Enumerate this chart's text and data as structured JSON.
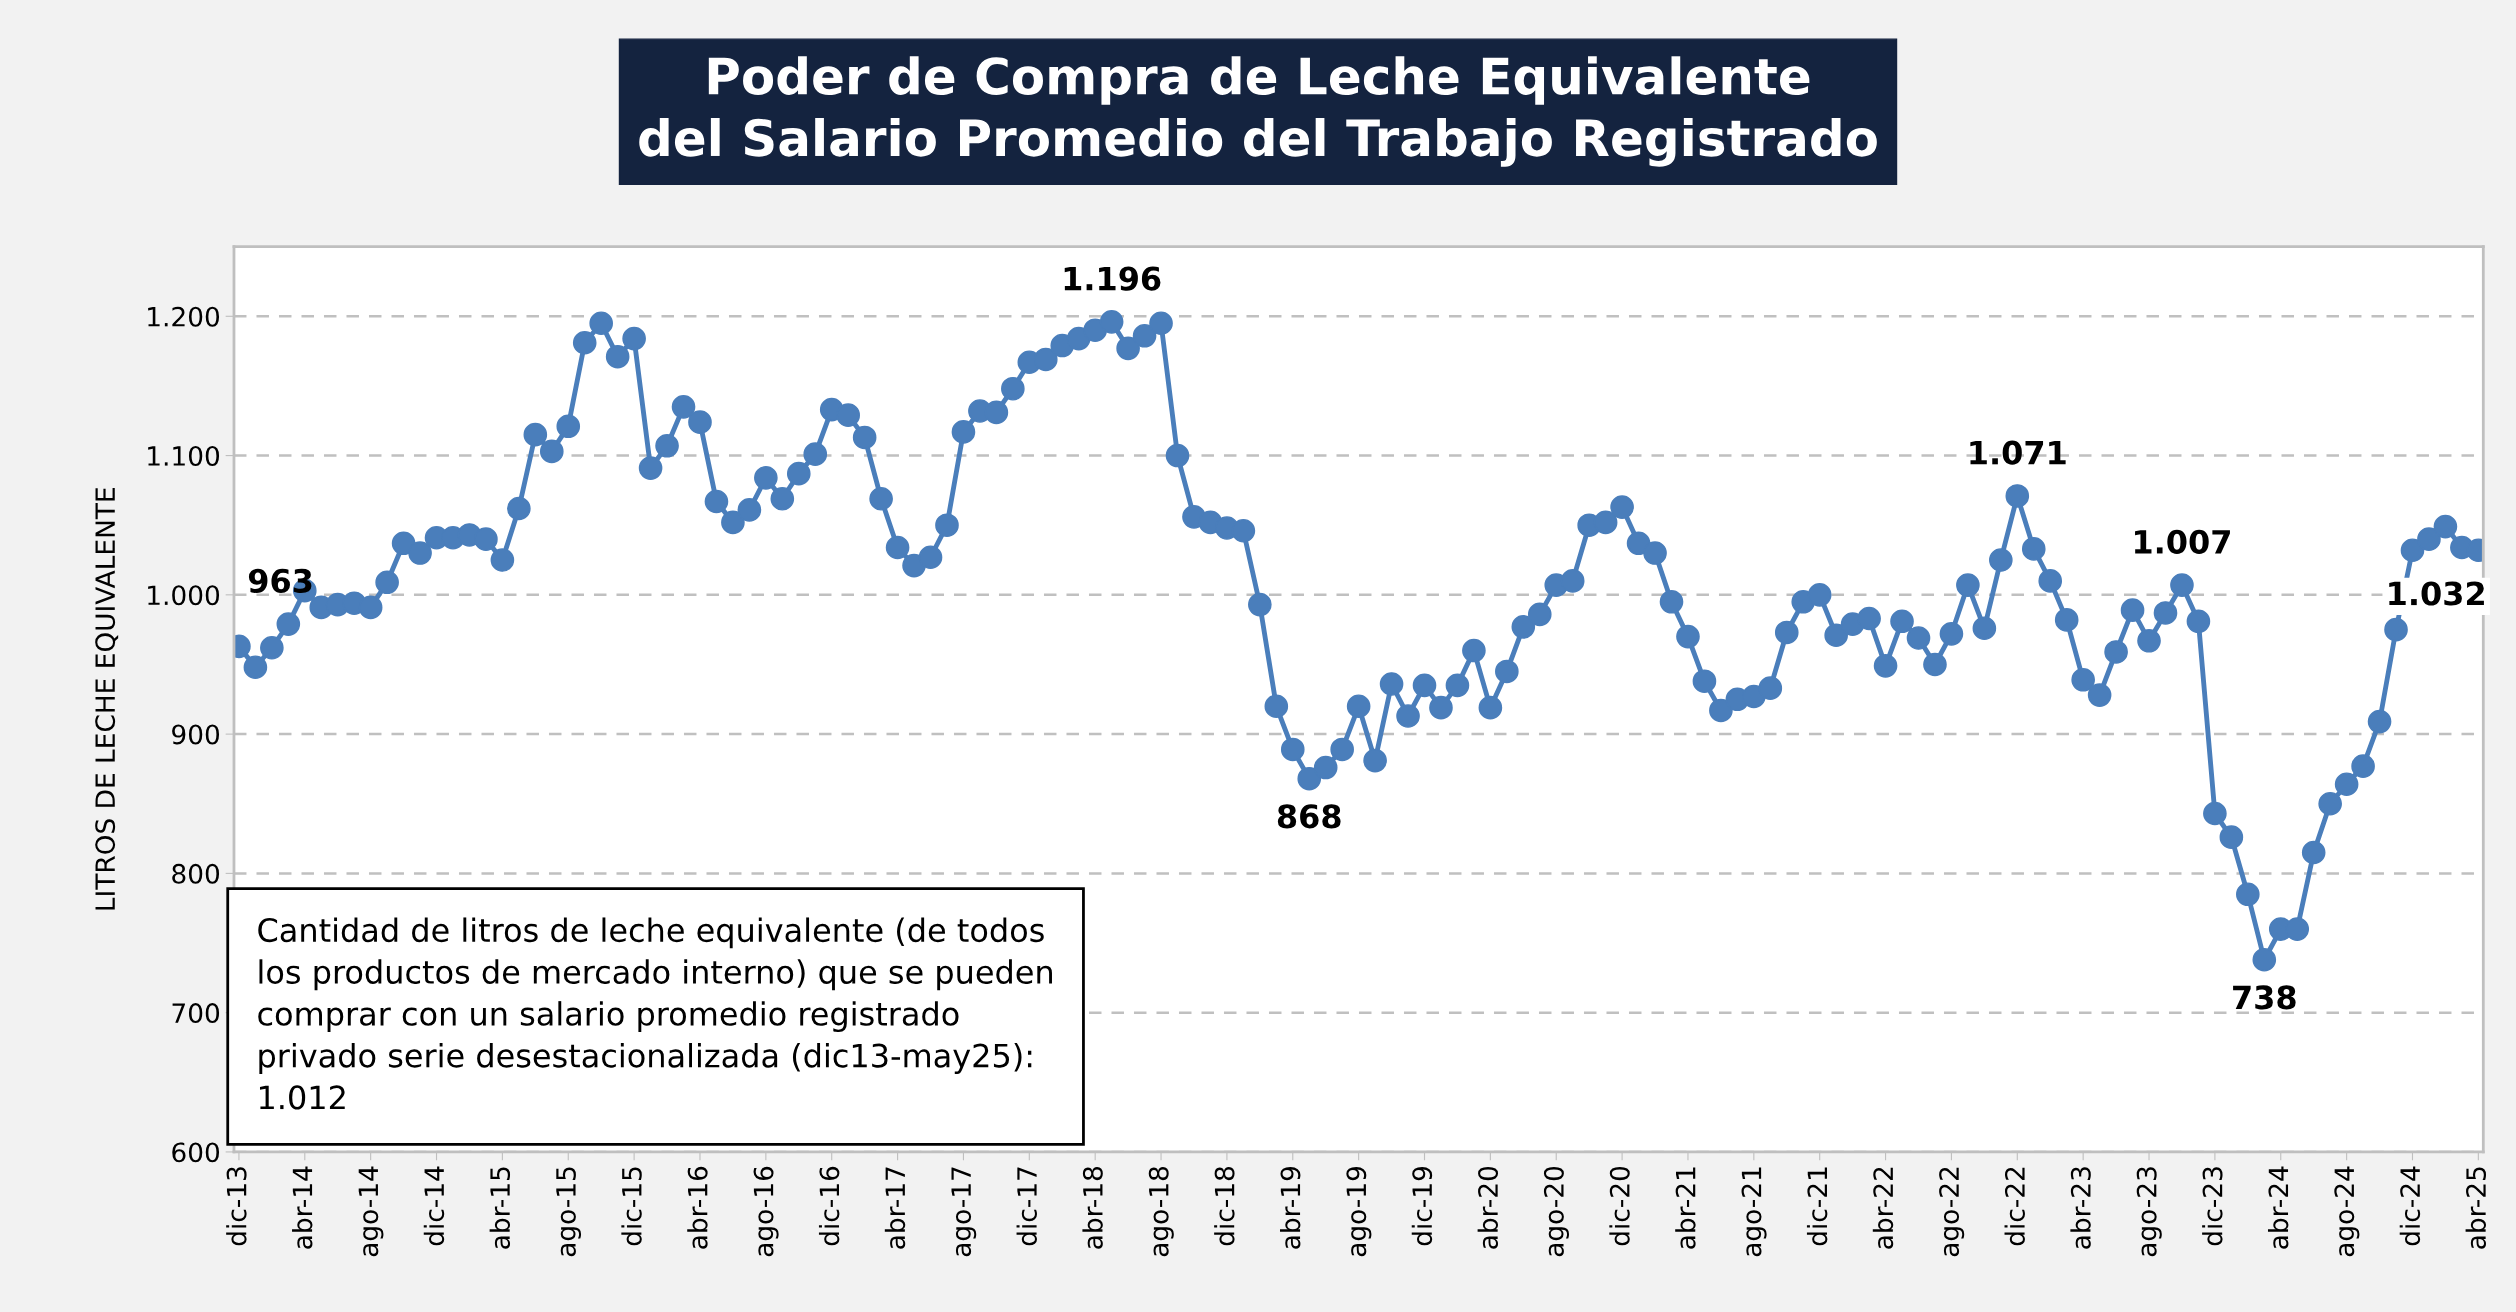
{
  "chart_data": {
    "type": "line",
    "title": "Poder de Compra de Leche Equivalente\ndel Salario Promedio del Trabajo Registrado",
    "ylabel": "LITROS DE LECHE EQUIVALENTE",
    "categories": [
      "dic-13",
      null,
      null,
      null,
      "abr-14",
      null,
      null,
      null,
      "ago-14",
      null,
      null,
      null,
      "dic-14",
      null,
      null,
      null,
      "abr-15",
      null,
      null,
      null,
      "ago-15",
      null,
      null,
      null,
      "dic-15",
      null,
      null,
      null,
      "abr-16",
      null,
      null,
      null,
      "ago-16",
      null,
      null,
      null,
      "dic-16",
      null,
      null,
      null,
      "abr-17",
      null,
      null,
      null,
      "ago-17",
      null,
      null,
      null,
      "dic-17",
      null,
      null,
      null,
      "abr-18",
      null,
      null,
      null,
      "ago-18",
      null,
      null,
      null,
      "dic-18",
      null,
      null,
      null,
      "abr-19",
      null,
      null,
      null,
      "ago-19",
      null,
      null,
      null,
      "dic-19",
      null,
      null,
      null,
      "abr-20",
      null,
      null,
      null,
      "ago-20",
      null,
      null,
      null,
      "dic-20",
      null,
      null,
      null,
      "abr-21",
      null,
      null,
      null,
      "ago-21",
      null,
      null,
      null,
      "dic-21",
      null,
      null,
      null,
      "abr-22",
      null,
      null,
      null,
      "ago-22",
      null,
      null,
      null,
      "dic-22",
      null,
      null,
      null,
      "abr-23",
      null,
      null,
      null,
      "ago-23",
      null,
      null,
      null,
      "dic-23",
      null,
      null,
      null,
      "abr-24",
      null,
      null,
      null,
      "ago-24",
      null,
      null,
      null,
      "dic-24",
      null,
      null,
      null,
      "abr-25"
    ],
    "series": [
      {
        "color": "#4a7ebb",
        "values": [
          963,
          948,
          962,
          979,
          1003,
          991,
          993,
          994,
          991,
          1009,
          1037,
          1030,
          1041,
          1041,
          1043,
          1040,
          1025,
          1062,
          1115,
          1103,
          1121,
          1181,
          1195,
          1171,
          1184,
          1091,
          1107,
          1135,
          1124,
          1067,
          1052,
          1061,
          1084,
          1069,
          1087,
          1101,
          1133,
          1129,
          1113,
          1069,
          1034,
          1021,
          1027,
          1050,
          1117,
          1132,
          1131,
          1148,
          1167,
          1169,
          1179,
          1184,
          1190,
          1196,
          1177,
          1186,
          1195,
          1100,
          1056,
          1052,
          1048,
          1046,
          993,
          920,
          889,
          868,
          876,
          889,
          920,
          881,
          936,
          913,
          935,
          919,
          935,
          960,
          919,
          945,
          977,
          986,
          1007,
          1010,
          1050,
          1052,
          1063,
          1037,
          1030,
          995,
          970,
          938,
          917,
          925,
          927,
          933,
          973,
          995,
          1000,
          971,
          979,
          983,
          949,
          981,
          969,
          950,
          972,
          1007,
          976,
          1025,
          1071,
          1033,
          1010,
          982,
          939,
          928,
          959,
          989,
          967,
          987,
          1007,
          981,
          843,
          826,
          785,
          738,
          760,
          760,
          815,
          850,
          864,
          877,
          909,
          975,
          1032,
          1040,
          1049,
          1034,
          1032
        ],
        "value_labels": [
          "963",
          null,
          null,
          null,
          null,
          null,
          null,
          null,
          null,
          null,
          null,
          null,
          null,
          null,
          null,
          null,
          null,
          null,
          null,
          null,
          null,
          null,
          null,
          null,
          null,
          null,
          null,
          null,
          null,
          null,
          null,
          null,
          null,
          null,
          null,
          null,
          null,
          null,
          null,
          null,
          null,
          null,
          null,
          null,
          null,
          null,
          null,
          null,
          null,
          null,
          null,
          null,
          null,
          "1.196",
          null,
          null,
          null,
          null,
          null,
          null,
          null,
          null,
          null,
          null,
          null,
          "868",
          null,
          null,
          null,
          null,
          null,
          null,
          null,
          null,
          null,
          null,
          null,
          null,
          null,
          null,
          null,
          null,
          null,
          null,
          null,
          null,
          null,
          null,
          null,
          null,
          null,
          null,
          null,
          null,
          null,
          null,
          null,
          null,
          null,
          null,
          null,
          null,
          null,
          null,
          null,
          null,
          null,
          null,
          "1.071",
          null,
          null,
          null,
          null,
          null,
          null,
          null,
          null,
          null,
          "1.007",
          null,
          null,
          null,
          null,
          "738",
          null,
          null,
          null,
          null,
          null,
          null,
          null,
          null,
          null,
          null,
          null,
          null,
          "1.032"
        ]
      }
    ],
    "ylim": [
      600,
      1250
    ],
    "yticks": [
      600,
      700,
      800,
      900,
      {
        "value": 1000,
        "label": "1.000"
      },
      {
        "value": 1100,
        "label": "1.100"
      },
      {
        "value": 1200,
        "label": "1.200"
      }
    ],
    "grid": "y",
    "marker": "circle",
    "line_style": "solid",
    "legend": false,
    "annotations": [
      "Cantidad de litros de leche equivalente (de todos\nlos productos de mercado interno) que se pueden\ncomprar con un salario promedio registrado\nprivado serie desestacionalizada (dic13-may25):\n1.012"
    ]
  }
}
